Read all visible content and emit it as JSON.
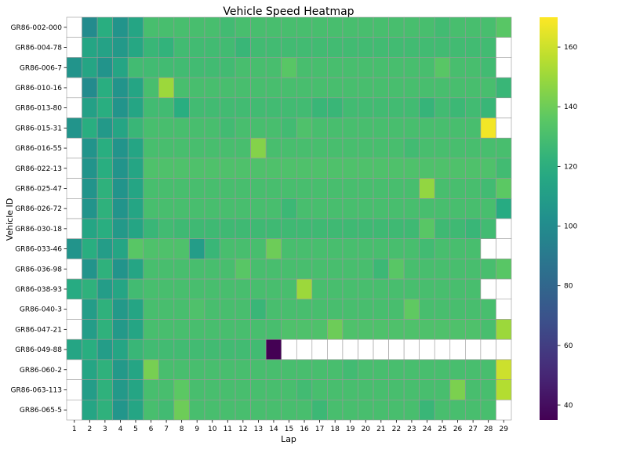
{
  "chart_data": {
    "type": "heatmap",
    "title": "Vehicle Speed Heatmap",
    "xlabel": "Lap",
    "ylabel": "Vehicle ID",
    "x_categories": [
      1,
      2,
      3,
      4,
      5,
      6,
      7,
      8,
      9,
      10,
      11,
      12,
      13,
      14,
      15,
      16,
      17,
      18,
      19,
      20,
      21,
      22,
      23,
      24,
      25,
      26,
      27,
      28,
      29
    ],
    "y_categories": [
      "GR86-002-000",
      "GR86-004-78",
      "GR86-006-7",
      "GR86-010-16",
      "GR86-013-80",
      "GR86-015-31",
      "GR86-016-55",
      "GR86-022-13",
      "GR86-025-47",
      "GR86-026-72",
      "GR86-030-18",
      "GR86-033-46",
      "GR86-036-98",
      "GR86-038-93",
      "GR86-040-3",
      "GR86-047-21",
      "GR86-049-88",
      "GR86-060-2",
      "GR86-063-113",
      "GR86-065-5"
    ],
    "colorbar": {
      "colormap": "viridis",
      "vmin": 35,
      "vmax": 170,
      "ticks": [
        40,
        60,
        80,
        100,
        120,
        140,
        160
      ]
    },
    "values": [
      [
        null,
        100,
        120,
        105,
        115,
        130,
        130,
        130,
        130,
        130,
        128,
        130,
        130,
        130,
        130,
        130,
        130,
        130,
        130,
        130,
        130,
        130,
        130,
        130,
        128,
        130,
        130,
        130,
        135
      ],
      [
        null,
        115,
        113,
        108,
        116,
        125,
        123,
        128,
        128,
        128,
        128,
        125,
        128,
        128,
        128,
        128,
        128,
        128,
        128,
        128,
        128,
        128,
        128,
        128,
        128,
        128,
        128,
        128,
        null
      ],
      [
        105,
        115,
        105,
        115,
        128,
        128,
        128,
        128,
        128,
        128,
        128,
        130,
        130,
        130,
        135,
        130,
        130,
        130,
        130,
        130,
        130,
        130,
        130,
        130,
        135,
        130,
        130,
        128,
        null
      ],
      [
        null,
        100,
        120,
        105,
        115,
        130,
        150,
        130,
        130,
        130,
        130,
        130,
        130,
        130,
        130,
        130,
        130,
        130,
        130,
        130,
        130,
        130,
        130,
        130,
        130,
        130,
        130,
        130,
        125
      ],
      [
        null,
        112,
        120,
        105,
        115,
        128,
        128,
        120,
        128,
        128,
        128,
        128,
        128,
        128,
        128,
        128,
        125,
        125,
        128,
        128,
        128,
        128,
        128,
        124,
        128,
        126,
        128,
        125,
        null
      ],
      [
        105,
        120,
        108,
        115,
        125,
        130,
        130,
        130,
        130,
        130,
        128,
        130,
        130,
        130,
        128,
        132,
        130,
        130,
        130,
        130,
        130,
        130,
        130,
        130,
        130,
        130,
        130,
        168,
        null
      ],
      [
        null,
        105,
        120,
        105,
        115,
        130,
        130,
        130,
        130,
        130,
        130,
        130,
        145,
        130,
        130,
        130,
        130,
        130,
        130,
        130,
        130,
        130,
        128,
        130,
        130,
        130,
        130,
        130,
        130
      ],
      [
        null,
        105,
        120,
        105,
        115,
        132,
        132,
        132,
        132,
        132,
        132,
        132,
        132,
        132,
        132,
        132,
        132,
        132,
        132,
        132,
        132,
        132,
        132,
        132,
        132,
        132,
        132,
        132,
        128
      ],
      [
        null,
        105,
        122,
        105,
        115,
        130,
        130,
        130,
        130,
        130,
        130,
        130,
        130,
        130,
        130,
        130,
        130,
        130,
        130,
        130,
        130,
        130,
        130,
        148,
        130,
        130,
        130,
        128,
        136
      ],
      [
        null,
        105,
        122,
        105,
        115,
        130,
        130,
        130,
        130,
        130,
        130,
        130,
        130,
        130,
        126,
        130,
        130,
        130,
        130,
        130,
        130,
        130,
        130,
        130,
        130,
        130,
        130,
        130,
        118
      ],
      [
        null,
        115,
        120,
        108,
        115,
        125,
        128,
        127,
        127,
        127,
        127,
        127,
        127,
        127,
        127,
        127,
        127,
        127,
        127,
        127,
        127,
        127,
        127,
        135,
        127,
        127,
        125,
        128,
        null
      ],
      [
        105,
        120,
        110,
        115,
        135,
        132,
        132,
        132,
        110,
        125,
        130,
        130,
        130,
        140,
        130,
        130,
        130,
        130,
        130,
        130,
        130,
        130,
        130,
        128,
        130,
        130,
        130,
        null,
        null
      ],
      [
        null,
        105,
        122,
        105,
        115,
        130,
        130,
        130,
        130,
        130,
        130,
        135,
        130,
        130,
        130,
        130,
        130,
        130,
        130,
        130,
        126,
        135,
        130,
        130,
        130,
        130,
        130,
        130,
        135
      ],
      [
        118,
        122,
        110,
        115,
        128,
        130,
        130,
        130,
        130,
        130,
        130,
        130,
        130,
        130,
        130,
        150,
        130,
        130,
        130,
        130,
        130,
        130,
        130,
        130,
        130,
        130,
        130,
        null,
        null
      ],
      [
        null,
        110,
        122,
        108,
        115,
        130,
        130,
        130,
        132,
        130,
        130,
        130,
        125,
        130,
        130,
        130,
        130,
        130,
        130,
        130,
        130,
        130,
        137,
        130,
        130,
        130,
        130,
        130,
        null
      ],
      [
        null,
        110,
        122,
        108,
        115,
        130,
        130,
        130,
        130,
        130,
        130,
        130,
        130,
        130,
        132,
        132,
        132,
        140,
        132,
        132,
        132,
        132,
        132,
        132,
        132,
        132,
        132,
        130,
        150
      ],
      [
        115,
        120,
        110,
        115,
        125,
        128,
        128,
        128,
        128,
        128,
        128,
        128,
        128,
        35,
        null,
        null,
        null,
        null,
        null,
        null,
        null,
        null,
        null,
        null,
        null,
        null,
        null,
        null,
        null
      ],
      [
        null,
        115,
        122,
        108,
        115,
        142,
        130,
        130,
        130,
        130,
        130,
        130,
        130,
        130,
        130,
        130,
        130,
        130,
        128,
        130,
        130,
        130,
        130,
        130,
        130,
        130,
        130,
        130,
        160
      ],
      [
        null,
        110,
        122,
        108,
        115,
        130,
        130,
        136,
        130,
        130,
        130,
        130,
        130,
        130,
        130,
        128,
        130,
        130,
        130,
        130,
        130,
        130,
        130,
        130,
        130,
        143,
        130,
        130,
        155
      ],
      [
        null,
        115,
        122,
        106,
        115,
        130,
        128,
        140,
        130,
        130,
        130,
        130,
        130,
        130,
        130,
        130,
        126,
        130,
        130,
        130,
        130,
        130,
        130,
        125,
        130,
        130,
        130,
        130,
        null
      ]
    ]
  }
}
